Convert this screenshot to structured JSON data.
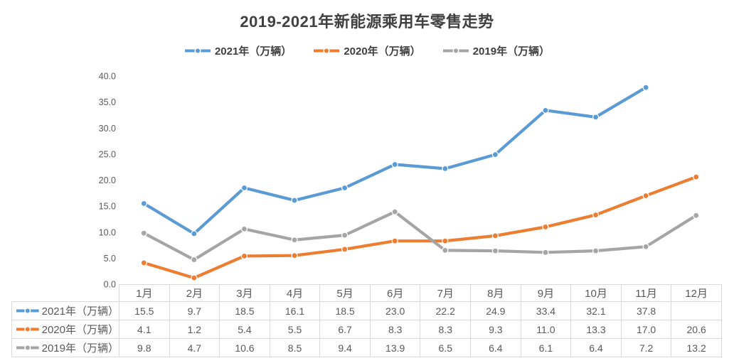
{
  "chart": {
    "title": "2019-2021年新能源乘用车零售走势"
  },
  "chart_data": {
    "type": "line",
    "title": "2019-2021年新能源乘用车零售走势",
    "categories": [
      "1月",
      "2月",
      "3月",
      "4月",
      "5月",
      "6月",
      "7月",
      "8月",
      "9月",
      "10月",
      "11月",
      "12月"
    ],
    "series": [
      {
        "name": "2021年（万辆）",
        "color": "#5B9BD5",
        "values": [
          15.5,
          9.7,
          18.5,
          16.1,
          18.5,
          23.0,
          22.2,
          24.9,
          33.4,
          32.1,
          37.8,
          null
        ]
      },
      {
        "name": "2020年（万辆）",
        "color": "#ED7D31",
        "values": [
          4.1,
          1.2,
          5.4,
          5.5,
          6.7,
          8.3,
          8.3,
          9.3,
          11.0,
          13.3,
          17.0,
          20.6
        ]
      },
      {
        "name": "2019年（万辆）",
        "color": "#A5A5A5",
        "values": [
          9.8,
          4.7,
          10.6,
          8.5,
          9.4,
          13.9,
          6.5,
          6.4,
          6.1,
          6.4,
          7.2,
          13.2
        ]
      }
    ],
    "xlabel": "",
    "ylabel": "",
    "ylim": [
      0,
      40
    ],
    "y_tick_step": 5,
    "y_tick_labels": [
      "0.0",
      "5.0",
      "10.0",
      "15.0",
      "20.0",
      "25.0",
      "30.0",
      "35.0",
      "40.0"
    ],
    "grid": false,
    "markers": true,
    "legend_position": "top",
    "data_table_shown": true
  },
  "colors": {
    "title_text": "#404040",
    "axis_text": "#595959",
    "table_text": "#595959",
    "table_border": "#d9d9d9",
    "series_2021": "#5B9BD5",
    "series_2020": "#ED7D31",
    "series_2019": "#A5A5A5",
    "background": "#ffffff"
  }
}
